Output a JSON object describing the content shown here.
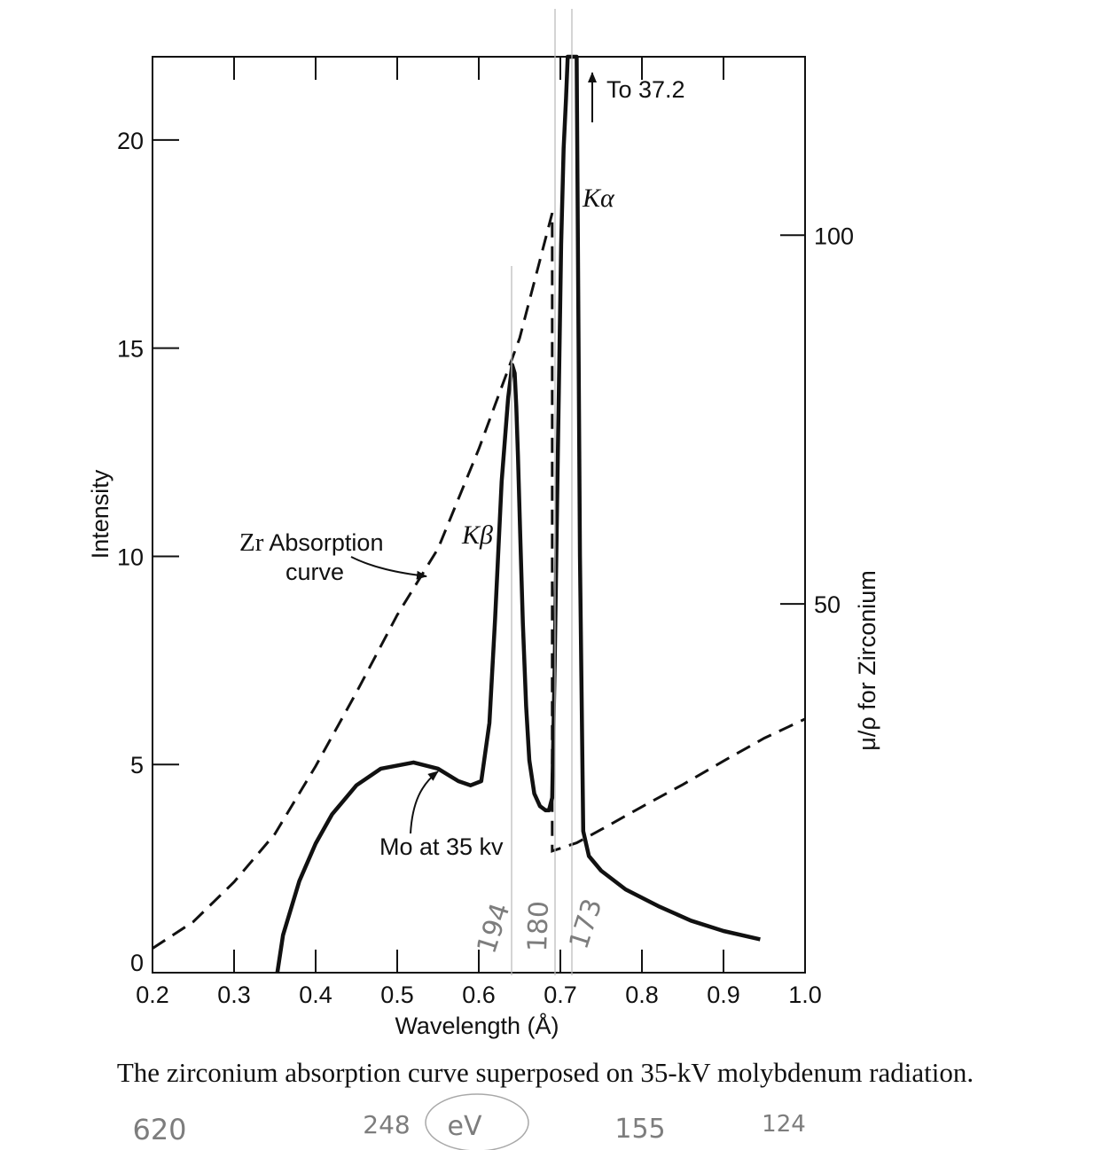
{
  "chart_data": {
    "type": "line",
    "caption": "The zirconium absorption curve superposed on 35-kV molybdenum radiation.",
    "xlabel": "Wavelength (Å)",
    "ylabel": "Intensity",
    "y2label": "μ/ρ for Zirconium",
    "xlim": [
      0.2,
      1.0
    ],
    "ylim": [
      0,
      22
    ],
    "y2lim": [
      0,
      124.2
    ],
    "x_ticks": [
      "0.2",
      "0.3",
      "0.4",
      "0.5",
      "0.6",
      "0.7",
      "0.8",
      "0.9",
      "1.0"
    ],
    "y_ticks": [
      "0",
      "5",
      "10",
      "15",
      "20"
    ],
    "y2_ticks": [
      "50",
      "100"
    ],
    "grid": false,
    "series": [
      {
        "name": "Mo at 35 kv",
        "axis": "left",
        "style": "solid",
        "x": [
          0.353,
          0.36,
          0.38,
          0.4,
          0.42,
          0.45,
          0.48,
          0.52,
          0.55,
          0.575,
          0.59,
          0.603,
          0.613,
          0.62,
          0.628,
          0.636,
          0.641,
          0.644,
          0.646,
          0.648,
          0.651,
          0.654,
          0.658,
          0.662,
          0.668,
          0.675,
          0.682,
          0.686,
          0.69,
          0.693,
          0.697,
          0.701,
          0.704,
          0.707,
          0.709,
          0.712,
          0.714,
          0.717,
          0.72,
          0.724,
          0.728,
          0.735,
          0.75,
          0.78,
          0.82,
          0.86,
          0.9,
          0.945
        ],
        "y": [
          0.0,
          0.9,
          2.2,
          3.1,
          3.8,
          4.5,
          4.9,
          5.05,
          4.9,
          4.6,
          4.5,
          4.6,
          6.0,
          8.5,
          11.8,
          13.8,
          14.6,
          14.4,
          13.6,
          12.4,
          10.4,
          8.4,
          6.4,
          5.1,
          4.3,
          4.0,
          3.9,
          3.9,
          4.2,
          7.4,
          12.5,
          17.5,
          19.8,
          21.0,
          22.0,
          22.0,
          22.0,
          22.0,
          22.0,
          10.0,
          3.4,
          2.8,
          2.45,
          2.0,
          1.6,
          1.25,
          1.0,
          0.8
        ]
      },
      {
        "name": "Zr Absorption curve",
        "axis": "right",
        "style": "dashed",
        "x": [
          0.2,
          0.25,
          0.3,
          0.35,
          0.4,
          0.45,
          0.5,
          0.55,
          0.6,
          0.65,
          0.69,
          0.69,
          0.72,
          0.75,
          0.8,
          0.85,
          0.9,
          0.95,
          1.0
        ],
        "y": [
          3.3,
          6.9,
          12.3,
          18.8,
          28.0,
          38.0,
          48.5,
          57.5,
          71.0,
          86.0,
          103.0,
          16.5,
          17.6,
          19.4,
          22.5,
          25.5,
          28.7,
          31.8,
          34.4
        ]
      }
    ],
    "annotations": [
      {
        "text": "To 37.2",
        "x": 0.735,
        "y": 22,
        "marker": "arrow-up"
      },
      {
        "text": "Kα",
        "x": 0.71,
        "y": 18.5
      },
      {
        "text": "Kβ",
        "x": 0.63,
        "y": 11.4
      },
      {
        "text": "Zr Absorption curve",
        "x": 0.44,
        "y": 10.3,
        "marker": "arrow-right"
      },
      {
        "text": "Mo at 35 kv",
        "x": 0.52,
        "y": 3.4,
        "marker": "arrow-up"
      }
    ],
    "handwritten": {
      "edge_labels": [
        "194",
        "180",
        "173"
      ],
      "ev_values": [
        "620",
        "248",
        "155",
        "124"
      ],
      "ev_unit": "eV"
    }
  }
}
